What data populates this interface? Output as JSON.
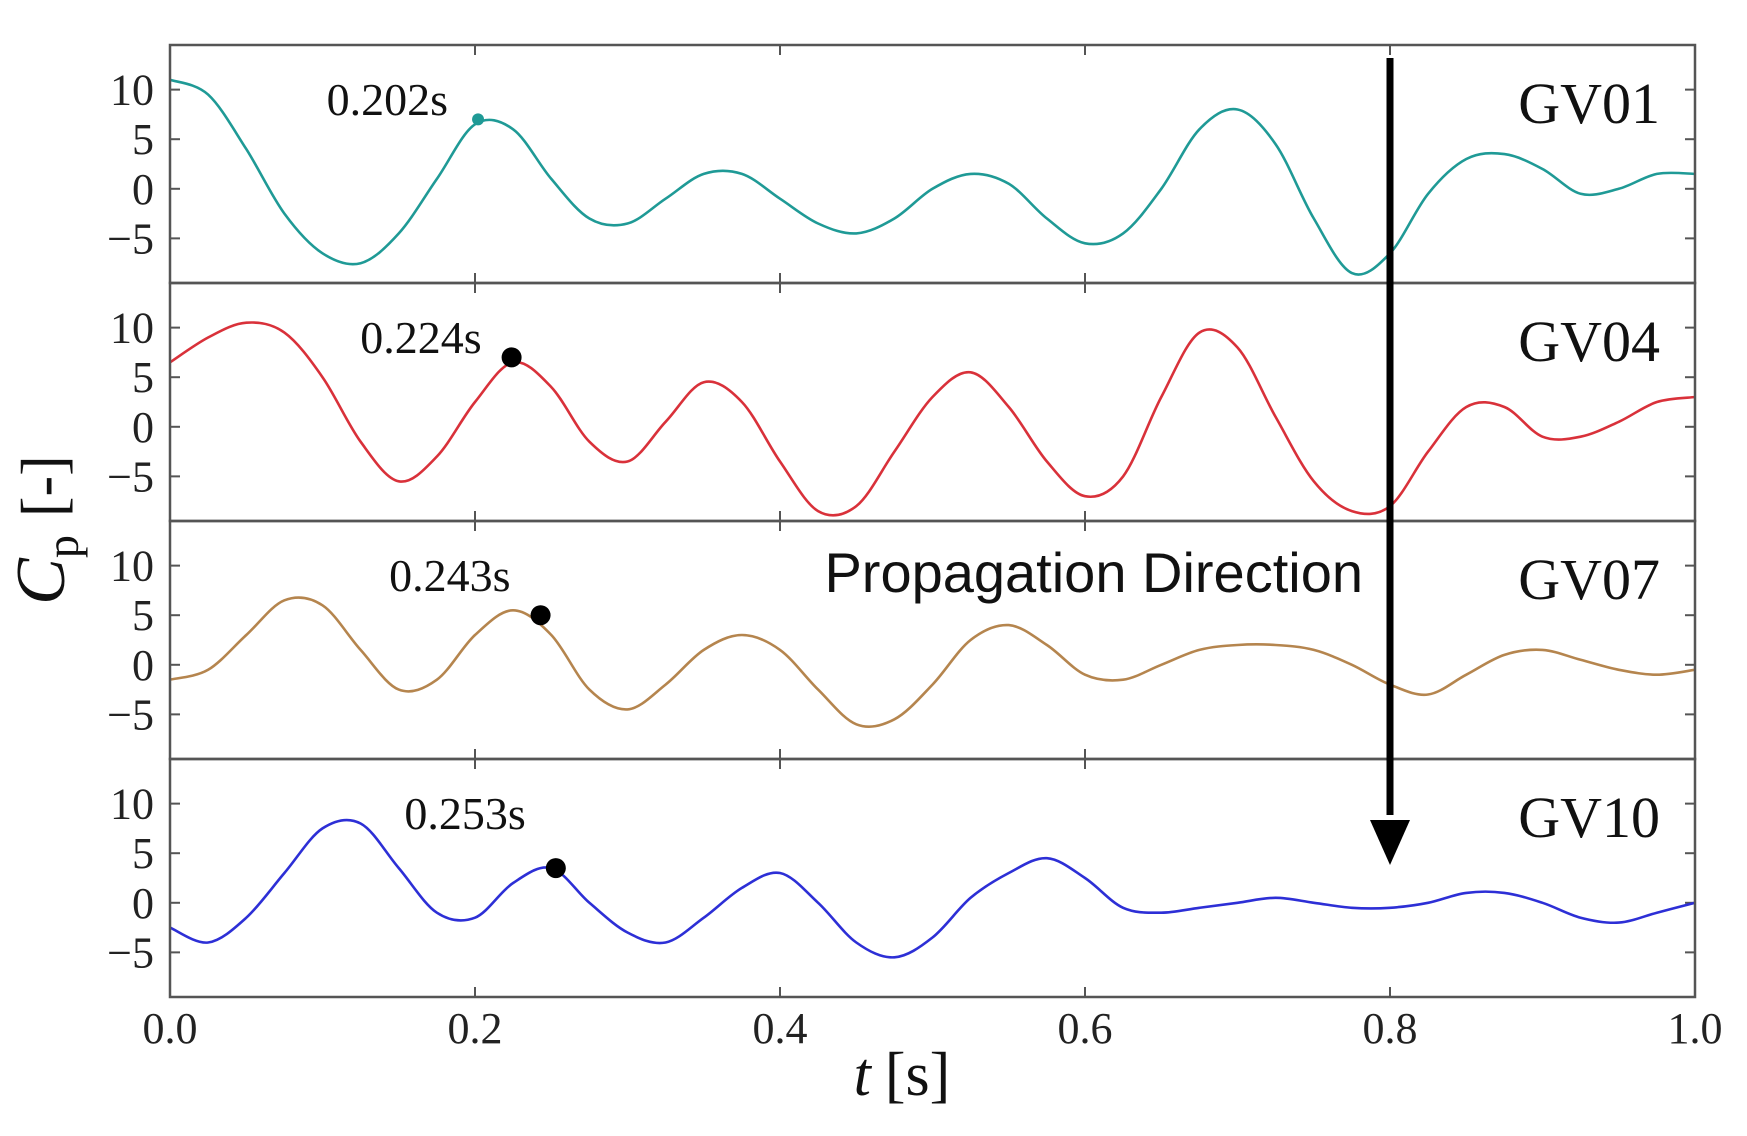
{
  "chart_data": {
    "type": "line",
    "title": "",
    "xlabel": {
      "italic": "t",
      "unit": "[s]"
    },
    "ylabel": {
      "symbol": "C",
      "subscript": "p",
      "unit": "[-]"
    },
    "xlim": [
      0.0,
      1.0
    ],
    "ylim": [
      -9.5,
      14.5
    ],
    "x_ticks": [
      0.0,
      0.2,
      0.4,
      0.6,
      0.8,
      1.0
    ],
    "x_tick_labels": [
      "0.0",
      "0.2",
      "0.4",
      "0.6",
      "0.8",
      "1.0"
    ],
    "y_ticks": [
      10,
      5,
      0,
      -5
    ],
    "y_tick_labels": [
      "10",
      "5",
      "0",
      "-5"
    ],
    "x": [
      0.0,
      0.025,
      0.05,
      0.075,
      0.1,
      0.125,
      0.15,
      0.175,
      0.2,
      0.225,
      0.25,
      0.275,
      0.3,
      0.325,
      0.35,
      0.375,
      0.4,
      0.425,
      0.45,
      0.475,
      0.5,
      0.525,
      0.55,
      0.575,
      0.6,
      0.625,
      0.65,
      0.675,
      0.7,
      0.725,
      0.75,
      0.775,
      0.8,
      0.825,
      0.85,
      0.875,
      0.9,
      0.925,
      0.95,
      0.975,
      1.0
    ],
    "series": [
      {
        "name": "GV01",
        "color": "#1f9a96",
        "values": [
          11.0,
          9.5,
          4.0,
          -2.5,
          -6.5,
          -7.5,
          -4.5,
          1.0,
          6.5,
          6.0,
          1.0,
          -3.0,
          -3.5,
          -1.0,
          1.5,
          1.5,
          -1.0,
          -3.5,
          -4.5,
          -3.0,
          0.0,
          1.5,
          0.5,
          -3.0,
          -5.5,
          -4.5,
          0.0,
          6.0,
          8.0,
          4.5,
          -3.0,
          -8.5,
          -6.5,
          -0.5,
          3.0,
          3.5,
          2.0,
          -0.5,
          0.0,
          1.5,
          1.5
        ],
        "peak": {
          "x": 0.202,
          "y": 7.0,
          "label": "0.202s"
        }
      },
      {
        "name": "GV04",
        "color": "#d9313a",
        "values": [
          6.5,
          9.0,
          10.5,
          9.5,
          5.0,
          -1.5,
          -5.5,
          -3.0,
          2.5,
          6.5,
          4.0,
          -1.5,
          -3.5,
          0.5,
          4.5,
          2.5,
          -3.5,
          -8.5,
          -8.0,
          -2.5,
          3.0,
          5.5,
          2.0,
          -3.5,
          -7.0,
          -5.0,
          3.0,
          9.5,
          8.0,
          1.0,
          -5.5,
          -8.5,
          -8.0,
          -2.5,
          2.0,
          2.0,
          -1.0,
          -1.0,
          0.5,
          2.5,
          3.0
        ],
        "peak": {
          "x": 0.224,
          "y": 7.0,
          "label": "0.224s"
        }
      },
      {
        "name": "GV07",
        "color": "#b5854e",
        "values": [
          -1.5,
          -0.5,
          3.0,
          6.5,
          6.0,
          1.5,
          -2.5,
          -1.5,
          3.0,
          5.5,
          3.0,
          -2.5,
          -4.5,
          -2.0,
          1.5,
          3.0,
          1.5,
          -2.5,
          -6.0,
          -5.5,
          -2.0,
          2.5,
          4.0,
          2.0,
          -1.0,
          -1.5,
          0.0,
          1.5,
          2.0,
          2.0,
          1.5,
          0.0,
          -2.0,
          -3.0,
          -1.0,
          1.0,
          1.5,
          0.5,
          -0.5,
          -1.0,
          -0.5
        ],
        "peak": {
          "x": 0.243,
          "y": 5.0,
          "label": "0.243s"
        }
      },
      {
        "name": "GV10",
        "color": "#2d2fd6",
        "values": [
          -2.5,
          -4.0,
          -1.5,
          3.0,
          7.5,
          8.0,
          3.5,
          -1.0,
          -1.5,
          2.0,
          3.5,
          0.0,
          -3.0,
          -4.0,
          -1.5,
          1.5,
          3.0,
          0.0,
          -4.0,
          -5.5,
          -3.5,
          0.5,
          3.0,
          4.5,
          2.5,
          -0.5,
          -1.0,
          -0.5,
          0.0,
          0.5,
          0.0,
          -0.5,
          -0.5,
          0.0,
          1.0,
          1.0,
          0.0,
          -1.5,
          -2.0,
          -1.0,
          0.0
        ],
        "peak": {
          "x": 0.253,
          "y": 3.5,
          "label": "0.253s"
        }
      }
    ],
    "annotation": {
      "text": "Propagation Direction",
      "arrow": {
        "x": 0.8,
        "from_panel": "GV01",
        "to_panel": "GV10",
        "direction": "down"
      }
    },
    "grid": false,
    "legend": "panel labels at top-right of each panel"
  }
}
